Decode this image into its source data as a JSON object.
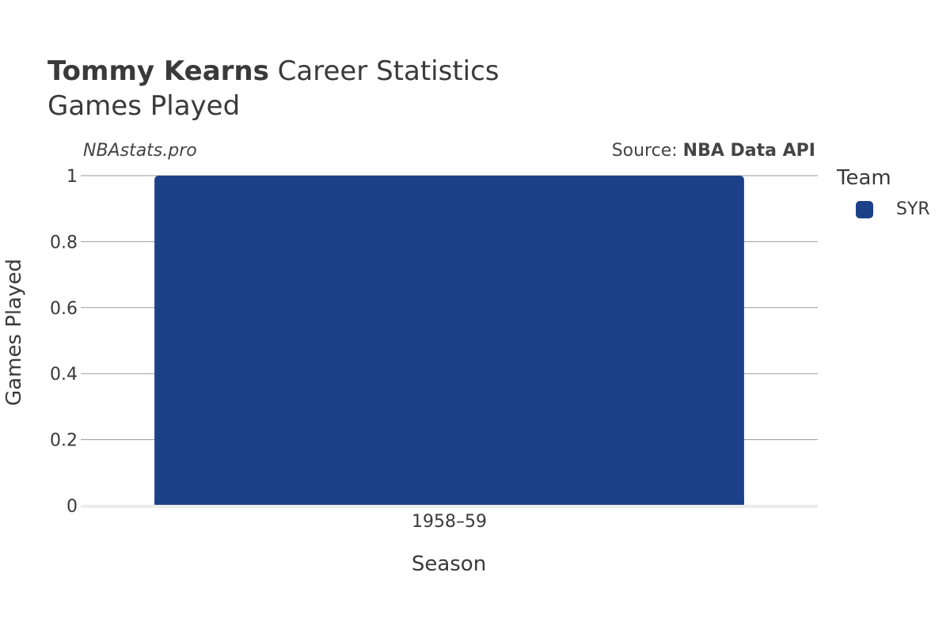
{
  "header": {
    "player_name": "Tommy Kearns",
    "title_rest": " Career Statistics",
    "subtitle": "Games Played"
  },
  "watermark": "NBAstats.pro",
  "source": {
    "prefix": "Source: ",
    "name": "NBA Data API"
  },
  "legend": {
    "title": "Team",
    "items": [
      {
        "label": "SYR",
        "color": "#1d4189"
      }
    ]
  },
  "colors": {
    "bar": "#1d4189",
    "grid": "#999999",
    "baseline": "#ececec",
    "text": "#333333"
  },
  "chart_data": {
    "type": "bar",
    "title": "Tommy Kearns Career Statistics",
    "subtitle": "Games Played",
    "xlabel": "Season",
    "ylabel": "Games Played",
    "categories": [
      "1958–59"
    ],
    "series": [
      {
        "name": "SYR",
        "values": [
          1
        ]
      }
    ],
    "ylim": [
      0,
      1
    ],
    "yticks": [
      "0",
      "0.2",
      "0.4",
      "0.6",
      "0.8",
      "1"
    ],
    "ytick_values": [
      0,
      0.2,
      0.4,
      0.6,
      0.8,
      1
    ],
    "grid": true,
    "legend_position": "right"
  }
}
